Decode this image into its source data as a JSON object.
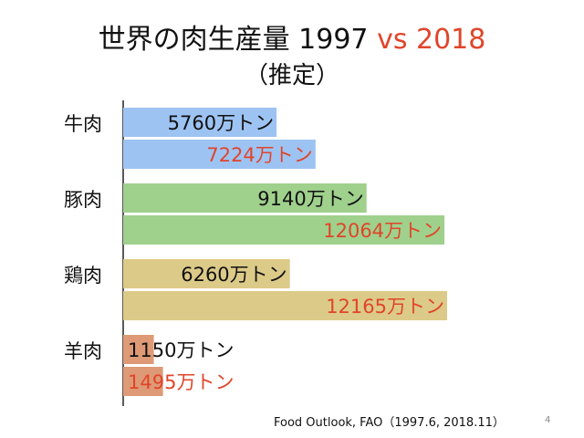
{
  "title": {
    "main": "世界の肉生産量 1997 ",
    "vs": "vs 2018",
    "subtitle": "（推定）"
  },
  "source": "Food Outlook, FAO（1997.6, 2018.11）",
  "page_number": "4",
  "chart_data": {
    "type": "bar",
    "orientation": "horizontal",
    "title": "世界の肉生産量 1997 vs 2018",
    "subtitle": "（推定）",
    "categories": [
      "牛肉",
      "豚肉",
      "鶏肉",
      "羊肉"
    ],
    "unit": "万トン",
    "series": [
      {
        "values": [
          5760,
          9140,
          6260,
          1150
        ],
        "labels": [
          "5760万トン",
          "9140万トン",
          "6260万トン",
          "1150万トン"
        ],
        "label_color": "#111111"
      },
      {
        "values": [
          7224,
          12064,
          12165,
          1495
        ],
        "labels": [
          "7224万トン",
          "12064万トン",
          "12165万トン",
          "1495万トン"
        ],
        "label_color": "#e0452a"
      }
    ],
    "category_colors": [
      "#9dc3f2",
      "#9fd08c",
      "#dcca88",
      "#de9a76"
    ],
    "xlim": [
      0,
      12165
    ],
    "grid": false,
    "legend": "none"
  }
}
